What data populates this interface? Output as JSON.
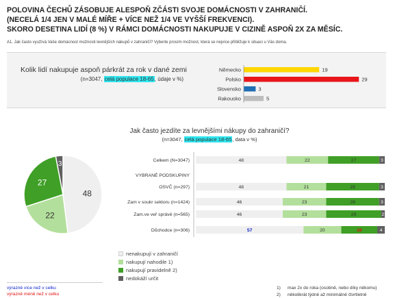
{
  "title": {
    "line1": "POLOVINA ČECHŮ ZÁSOBUJE ALESPOŇ ZČÁSTI SVOJE DOMÁCNOSTI V ZAHRANIČÍ.",
    "line2": "(NECELÁ 1/4 JEN V MALÉ MÍŘE + VÍCE NEŽ 1/4 VE VYŠŠÍ FREKVENCI).",
    "line3": "SKORO DESETINA LIDÍ (8 %) V RÁMCI DOMÁCNOSTI NAKUPUJE V CIZINĚ ASPOŇ 2X ZA MĚSÍC."
  },
  "question": "A1. Jak často využívá Vaše domácnost možnosti levnějších nákupů v zahraničí? Vyberte prosím možnost, která se nejvíce přibližuje k situaci u Vás doma.",
  "top_section": {
    "heading": "Kolik lidí nakupuje aspoň párkrát za rok v dané zemi",
    "sub_pre": "(n=3047, ",
    "sub_highlight": "celá populace 18-65",
    "sub_post": ", údaje v %)"
  },
  "bottom_section": {
    "heading": "Jak často jezdíte za levnějšími nákupy do zahraničí?",
    "sub_pre": "(n=3047, ",
    "sub_highlight": "celá populace 18-65",
    "sub_post": ", data v %)"
  },
  "chart_data": [
    {
      "type": "bar",
      "orientation": "horizontal",
      "categories": [
        "Německo",
        "Polsko",
        "Slovensko",
        "Rakousko"
      ],
      "values": [
        19,
        29,
        3,
        5
      ],
      "colors": [
        "#ffd700",
        "#e8161a",
        "#1f6fb5",
        "#bdbdbd"
      ],
      "xlim": [
        0,
        30
      ]
    },
    {
      "type": "pie",
      "labels": [
        "nenakupují v zahraničí",
        "nakupují nahodile 1)",
        "nakupují pravidelně 2)",
        "nedokáží určit"
      ],
      "values": [
        48,
        22,
        27,
        3
      ],
      "colors": [
        "#efefef",
        "#b3df9c",
        "#3f9f26",
        "#606060"
      ]
    },
    {
      "type": "bar",
      "orientation": "horizontal",
      "stacked": true,
      "categories": [
        "Celkem (N=3047)",
        "VYBRANÉ PODSKUPINY",
        "OSVČ (n=297)",
        "Zam v soukr sektoru (n=1424)",
        "Zam.ve veř správě (n=565)",
        "Důchodce (n=306)"
      ],
      "series": [
        {
          "name": "nenakupují v zahraničí",
          "color": "#efefef",
          "values": [
            48,
            null,
            48,
            46,
            46,
            57
          ]
        },
        {
          "name": "nakupují nahodile 1)",
          "color": "#b3df9c",
          "values": [
            22,
            null,
            21,
            23,
            23,
            20
          ]
        },
        {
          "name": "nakupují pravidelně 2)",
          "color": "#3f9f26",
          "values": [
            27,
            null,
            28,
            28,
            29,
            19
          ]
        },
        {
          "name": "nedokáží určit",
          "color": "#606060",
          "values": [
            3,
            null,
            3,
            3,
            2,
            4
          ]
        }
      ],
      "label_colors": {
        "Důchodce (n=306)": [
          "#0a1ec8",
          "#333333",
          "#e01010",
          "#ffffff"
        ]
      }
    }
  ],
  "legend": [
    {
      "label": "nenakupují v zahraničí",
      "color": "#efefef"
    },
    {
      "label": "nakupují nahodile 1)",
      "color": "#b3df9c"
    },
    {
      "label": "nakupují pravidelně 2)",
      "color": "#3f9f26"
    },
    {
      "label": "nedokáží určit",
      "color": "#606060"
    }
  ],
  "notes": {
    "blue": "výrazně více než v celku",
    "red": "výrazně méně než v celku"
  },
  "footnotes": [
    {
      "num": "1)",
      "text": "max 2x do roka (osobně, nebo díky někomu)"
    },
    {
      "num": "2)",
      "text": "několikrát týdně až minimálně čtvrtletně"
    }
  ]
}
